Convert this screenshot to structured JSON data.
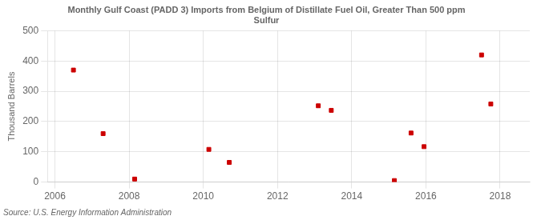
{
  "chart_data": {
    "type": "scatter",
    "title": "Monthly Gulf Coast (PADD 3) Imports from Belgium of Distillate Fuel Oil, Greater Than 500 ppm\nSulfur",
    "ylabel": "Thousand Barrels",
    "annotations": [
      "Source: U.S. Energy Information Administration"
    ],
    "x": [
      2006.5,
      2007.3,
      2008.15,
      2010.15,
      2010.7,
      2013.1,
      2013.45,
      2015.15,
      2015.6,
      2015.95,
      2017.5,
      2017.75
    ],
    "values": [
      370,
      160,
      10,
      108,
      65,
      252,
      237,
      5,
      162,
      117,
      420,
      258
    ],
    "color": "#cc0000",
    "marker": "square",
    "xlim": [
      2005.8,
      2018.8
    ],
    "ylim": [
      0,
      500
    ],
    "xticks": [
      2006,
      2008,
      2010,
      2012,
      2014,
      2016,
      2018
    ],
    "yticks": [
      0,
      100,
      200,
      300,
      400,
      500
    ],
    "grid": true
  }
}
